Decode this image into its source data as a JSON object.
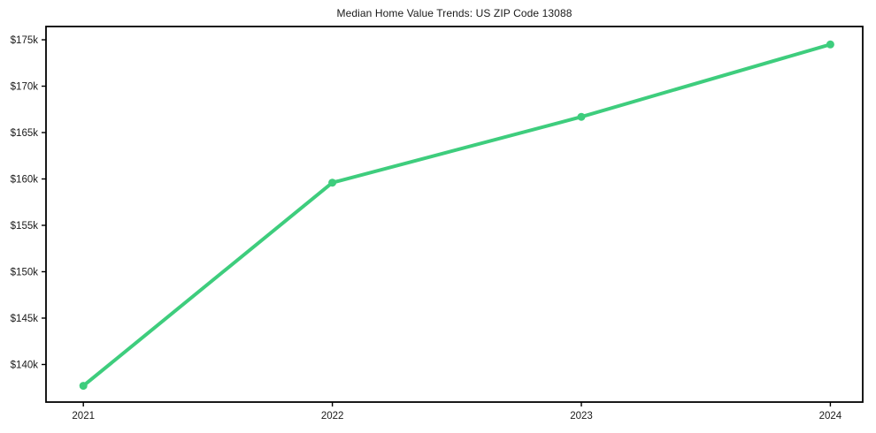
{
  "chart_data": {
    "type": "line",
    "title": "Median Home Value Trends: US ZIP Code 13088",
    "xlabel": "",
    "ylabel": "",
    "x": [
      2021,
      2022,
      2023,
      2024
    ],
    "xtick_labels": [
      "2021",
      "2022",
      "2023",
      "2024"
    ],
    "values": [
      137700,
      159600,
      166700,
      174500
    ],
    "ytick_values": [
      140000,
      145000,
      150000,
      155000,
      160000,
      165000,
      170000,
      175000
    ],
    "ytick_labels": [
      "$140k",
      "$145k",
      "$150k",
      "$155k",
      "$160k",
      "$165k",
      "$170k",
      "$175k"
    ],
    "xlim": [
      2020.85,
      2024.13
    ],
    "ylim": [
      135950,
      176430
    ],
    "grid": false,
    "legend_position": "none",
    "marker": "circle",
    "line_color": "#3ecd7d",
    "axis_color": "#000000",
    "text_color": "#1a1a1a"
  }
}
